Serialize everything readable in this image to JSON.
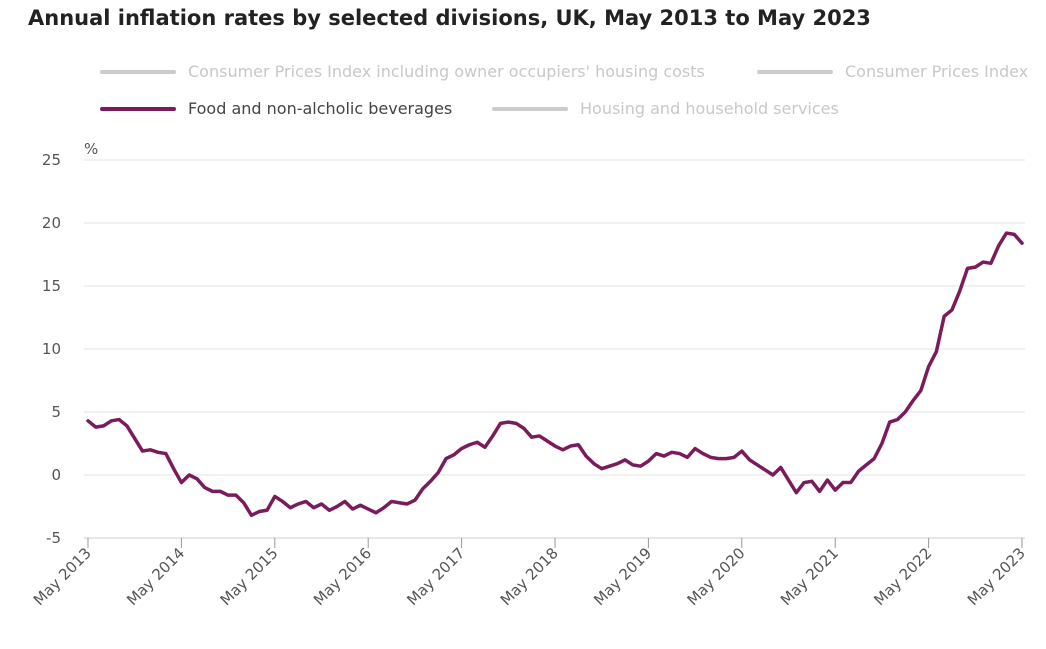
{
  "chart_data": {
    "type": "line",
    "title": "Annual inflation rates by selected divisions, UK, May 2013 to May 2023",
    "ylabel": "%",
    "ylim": [
      -5,
      25
    ],
    "yticks": [
      "25",
      "20",
      "15",
      "10",
      "5",
      "0",
      "-5"
    ],
    "xticks": [
      "May 2013",
      "May 2014",
      "May 2015",
      "May 2016",
      "May 2017",
      "May 2018",
      "May 2019",
      "May 2020",
      "May 2021",
      "May 2022",
      "May 2023"
    ],
    "x_range_months": [
      0,
      120
    ],
    "legend": [
      {
        "name": "Consumer Prices Index including owner occupiers' housing costs",
        "color": "#cccccc",
        "active": false
      },
      {
        "name": "Consumer Prices Index",
        "color": "#cccccc",
        "active": false
      },
      {
        "name": "Food and non-alcholic beverages",
        "color": "#7a1c5c",
        "active": true
      },
      {
        "name": "Housing and household services",
        "color": "#cccccc",
        "active": false
      }
    ],
    "series": [
      {
        "name": "Food and non-alcholic beverages",
        "color": "#7a1c5c",
        "values": [
          4.3,
          3.8,
          3.9,
          4.3,
          4.4,
          3.9,
          2.9,
          1.9,
          2.0,
          1.8,
          1.7,
          0.5,
          -0.6,
          0.0,
          -0.3,
          -1.0,
          -1.3,
          -1.3,
          -1.6,
          -1.6,
          -2.2,
          -3.2,
          -2.9,
          -2.8,
          -1.7,
          -2.1,
          -2.6,
          -2.3,
          -2.1,
          -2.6,
          -2.3,
          -2.8,
          -2.5,
          -2.1,
          -2.7,
          -2.4,
          -2.7,
          -3.0,
          -2.6,
          -2.1,
          -2.2,
          -2.3,
          -2.0,
          -1.1,
          -0.5,
          0.2,
          1.3,
          1.6,
          2.1,
          2.4,
          2.6,
          2.2,
          3.1,
          4.1,
          4.2,
          4.1,
          3.7,
          3.0,
          3.1,
          2.7,
          2.3,
          2.0,
          2.3,
          2.4,
          1.5,
          0.9,
          0.5,
          0.7,
          0.9,
          1.2,
          0.8,
          0.7,
          1.1,
          1.7,
          1.5,
          1.8,
          1.7,
          1.4,
          2.1,
          1.7,
          1.4,
          1.3,
          1.3,
          1.4,
          1.9,
          1.2,
          0.8,
          0.4,
          0.0,
          0.6,
          -0.4,
          -1.4,
          -0.6,
          -0.5,
          -1.3,
          -0.4,
          -1.2,
          -0.6,
          -0.6,
          0.3,
          0.8,
          1.3,
          2.5,
          4.2,
          4.4,
          5.0,
          5.9,
          6.7,
          8.6,
          9.8,
          12.6,
          13.1,
          14.6,
          16.4,
          16.5,
          16.9,
          16.8,
          18.2,
          19.2,
          19.1,
          18.4
        ]
      }
    ]
  }
}
